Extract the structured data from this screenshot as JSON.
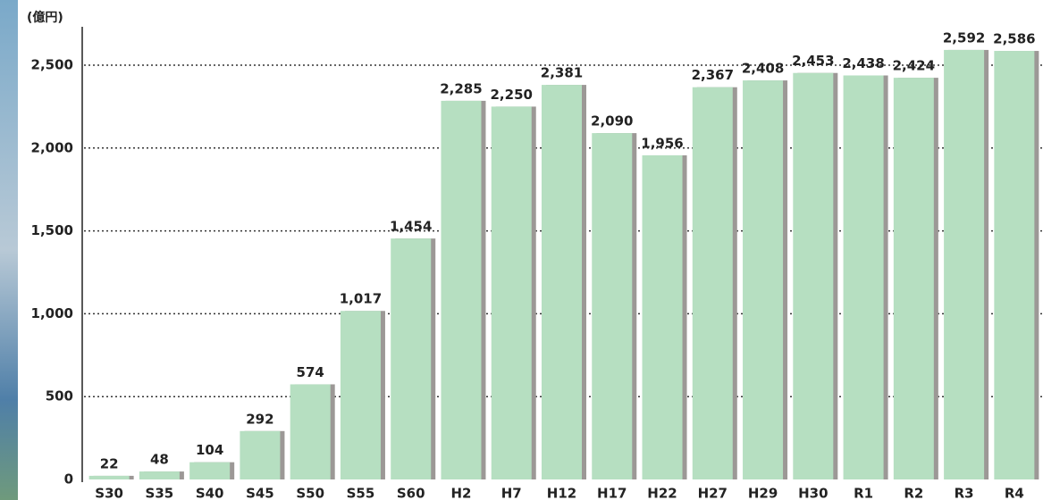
{
  "chart_data": {
    "type": "bar",
    "y_label": "(億円)",
    "categories": [
      "S30",
      "S35",
      "S40",
      "S45",
      "S50",
      "S55",
      "S60",
      "H2",
      "H7",
      "H12",
      "H17",
      "H22",
      "H27",
      "H29",
      "H30",
      "R1",
      "R2",
      "R3",
      "R4"
    ],
    "values": [
      22,
      48,
      104,
      292,
      574,
      1017,
      1454,
      2285,
      2250,
      2381,
      2090,
      1956,
      2367,
      2408,
      2453,
      2438,
      2424,
      2592,
      2586
    ],
    "value_labels": [
      "22",
      "48",
      "104",
      "292",
      "574",
      "1,017",
      "1,454",
      "2,285",
      "2,250",
      "2,381",
      "2,090",
      "1,956",
      "2,367",
      "2,408",
      "2,453",
      "2,438",
      "2,424",
      "2,592",
      "2,586"
    ],
    "color": "#b6dfc1",
    "ylim": [
      0,
      2750
    ],
    "yticks": [
      0,
      500,
      {
        "value": 1000,
        "label": "1,000"
      },
      {
        "value": 1500,
        "label": "1,500"
      },
      {
        "value": 2000,
        "label": "2,000"
      },
      {
        "value": 2500,
        "label": "2,500"
      }
    ],
    "grid": true
  }
}
